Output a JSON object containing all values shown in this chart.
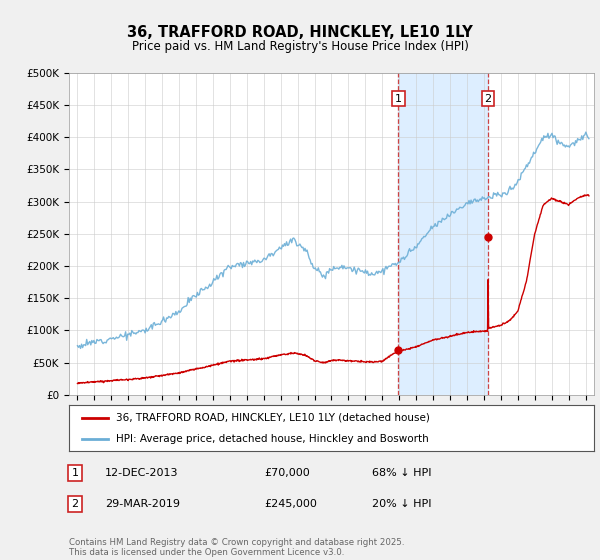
{
  "title": "36, TRAFFORD ROAD, HINCKLEY, LE10 1LY",
  "subtitle": "Price paid vs. HM Land Registry's House Price Index (HPI)",
  "ylabel_ticks": [
    "£0",
    "£50K",
    "£100K",
    "£150K",
    "£200K",
    "£250K",
    "£300K",
    "£350K",
    "£400K",
    "£450K",
    "£500K"
  ],
  "ytick_values": [
    0,
    50000,
    100000,
    150000,
    200000,
    250000,
    300000,
    350000,
    400000,
    450000,
    500000
  ],
  "xlim": [
    1994.5,
    2025.5
  ],
  "ylim": [
    0,
    500000
  ],
  "background_color": "#f0f0f0",
  "plot_bg_color": "#ffffff",
  "transaction1": {
    "date_num": 2013.95,
    "price": 70000,
    "label": "1"
  },
  "transaction2": {
    "date_num": 2019.24,
    "price": 245000,
    "label": "2"
  },
  "shade_start": 2013.95,
  "shade_end": 2019.24,
  "legend_entry1": "36, TRAFFORD ROAD, HINCKLEY, LE10 1LY (detached house)",
  "legend_entry2": "HPI: Average price, detached house, Hinckley and Bosworth",
  "annotation1_date": "12-DEC-2013",
  "annotation1_price": "£70,000",
  "annotation1_hpi": "68% ↓ HPI",
  "annotation2_date": "29-MAR-2019",
  "annotation2_price": "£245,000",
  "annotation2_hpi": "20% ↓ HPI",
  "footer": "Contains HM Land Registry data © Crown copyright and database right 2025.\nThis data is licensed under the Open Government Licence v3.0.",
  "hpi_color": "#6baed6",
  "price_color": "#cc0000",
  "shade_color": "#ddeeff"
}
